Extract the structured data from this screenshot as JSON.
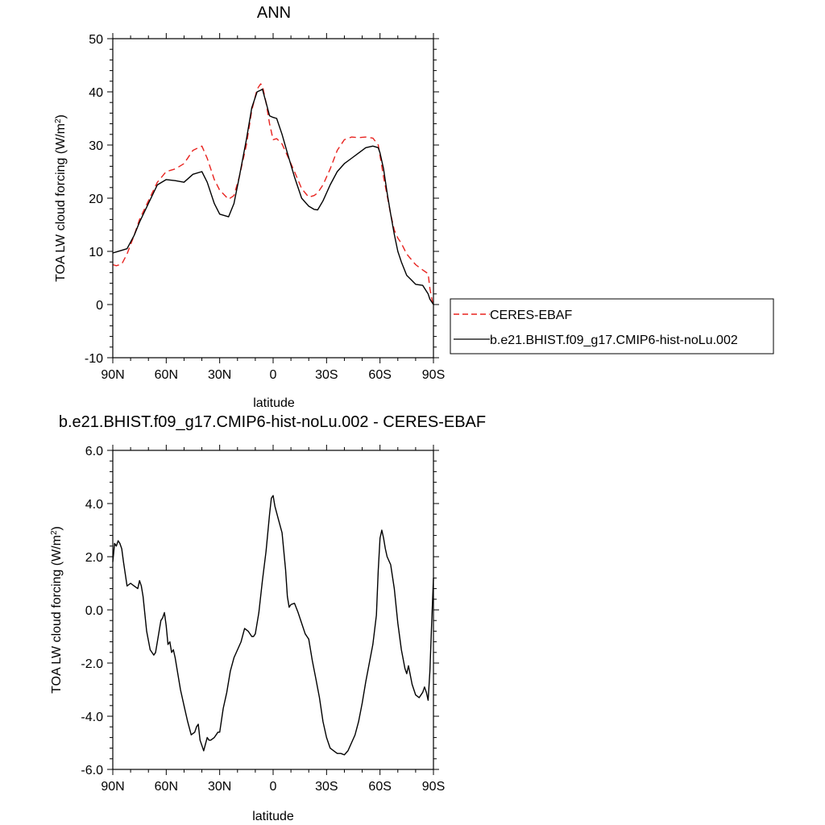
{
  "chart_data": [
    {
      "type": "line",
      "title": "ANN",
      "xlabel": "latitude",
      "ylabel": "TOA LW cloud forcing (W/m",
      "ylabel_sup": "2",
      "ylabel_close": ")",
      "xlim": [
        90,
        -90
      ],
      "ylim": [
        -10,
        50
      ],
      "xticks": [
        {
          "value": 90,
          "label": "90N"
        },
        {
          "value": 60,
          "label": "60N"
        },
        {
          "value": 30,
          "label": "30N"
        },
        {
          "value": 0,
          "label": "0"
        },
        {
          "value": -30,
          "label": "30S"
        },
        {
          "value": -60,
          "label": "60S"
        },
        {
          "value": -90,
          "label": "90S"
        }
      ],
      "yticks": [
        {
          "value": 50,
          "label": "50"
        },
        {
          "value": 40,
          "label": "40"
        },
        {
          "value": 30,
          "label": "30"
        },
        {
          "value": 20,
          "label": "20"
        },
        {
          "value": 10,
          "label": "10"
        },
        {
          "value": 0,
          "label": "0"
        },
        {
          "value": -10,
          "label": "-10"
        }
      ],
      "legend_position": "right",
      "series": [
        {
          "name": "CERES-EBAF",
          "color": "#e8231f",
          "dash": true,
          "x": [
            90,
            88,
            85,
            82,
            78,
            75,
            70,
            65,
            60,
            55,
            50,
            45,
            40,
            37,
            33,
            30,
            25,
            22,
            19,
            15,
            12,
            9,
            7,
            6,
            4,
            2,
            0,
            -2,
            -5,
            -8,
            -12,
            -16,
            -20,
            -23,
            -25,
            -28,
            -32,
            -36,
            -40,
            -44,
            -48,
            -52,
            -56,
            -59,
            -60,
            -62,
            -64,
            -66,
            -68,
            -70,
            -72,
            -75,
            -80,
            -84,
            -87,
            -88,
            -90
          ],
          "y": [
            7.5,
            7.3,
            7.6,
            9.5,
            13,
            16,
            19.5,
            23,
            25,
            25.5,
            26.5,
            29,
            29.8,
            27.5,
            23.5,
            21.5,
            19.8,
            20.5,
            24,
            30,
            36.5,
            40.5,
            41.5,
            41.2,
            38,
            34,
            31,
            31.2,
            30.2,
            28,
            25,
            21.8,
            20.2,
            20.5,
            21,
            22.5,
            25.5,
            29,
            31,
            31.5,
            31.4,
            31.5,
            31.3,
            30,
            28,
            24,
            20.5,
            17,
            14,
            12.5,
            11.5,
            9.5,
            7.5,
            6.5,
            5.8,
            3,
            -0.5
          ]
        },
        {
          "name": "b.e21.BHIST.f09_g17.CMIP6-hist-noLu.002",
          "color": "#000000",
          "dash": false,
          "x": [
            90,
            88,
            85,
            82,
            78,
            75,
            70,
            65,
            60,
            55,
            50,
            45,
            40,
            37,
            33,
            30,
            25,
            22,
            19,
            15,
            12,
            9,
            7,
            6,
            4,
            2,
            0,
            -2,
            -5,
            -8,
            -12,
            -16,
            -20,
            -23,
            -25,
            -28,
            -32,
            -36,
            -40,
            -44,
            -48,
            -52,
            -56,
            -59,
            -60,
            -62,
            -64,
            -66,
            -68,
            -70,
            -72,
            -75,
            -80,
            -84,
            -87,
            -88,
            -90
          ],
          "y": [
            9.7,
            9.9,
            10.2,
            10.5,
            13,
            15.5,
            19,
            22.5,
            23.5,
            23.3,
            23,
            24.5,
            25,
            23,
            19,
            17,
            16.5,
            19,
            24,
            31,
            37,
            40,
            40.3,
            40.5,
            38,
            35.5,
            35.2,
            35,
            32,
            28.5,
            24,
            20,
            18.5,
            17.9,
            17.8,
            19.5,
            22.5,
            25,
            26.5,
            27.5,
            28.5,
            29.5,
            29.8,
            29.5,
            28.5,
            25.5,
            21,
            17,
            13.2,
            10,
            8,
            5.5,
            3.8,
            3.6,
            2,
            1,
            0
          ]
        }
      ]
    },
    {
      "type": "line",
      "title": "b.e21.BHIST.f09_g17.CMIP6-hist-noLu.002 - CERES-EBAF",
      "xlabel": "latitude",
      "ylabel": "TOA LW cloud forcing (W/m",
      "ylabel_sup": "2",
      "ylabel_close": ")",
      "xlim": [
        90,
        -90
      ],
      "ylim": [
        -6,
        6
      ],
      "xticks": [
        {
          "value": 90,
          "label": "90N"
        },
        {
          "value": 60,
          "label": "60N"
        },
        {
          "value": 30,
          "label": "30N"
        },
        {
          "value": 0,
          "label": "0"
        },
        {
          "value": -30,
          "label": "30S"
        },
        {
          "value": -60,
          "label": "60S"
        },
        {
          "value": -90,
          "label": "90S"
        }
      ],
      "yticks": [
        {
          "value": 6,
          "label": "6.0"
        },
        {
          "value": 4,
          "label": "4.0"
        },
        {
          "value": 2,
          "label": "2.0"
        },
        {
          "value": 0,
          "label": "0.0"
        },
        {
          "value": -2,
          "label": "-2.0"
        },
        {
          "value": -4,
          "label": "-4.0"
        },
        {
          "value": -6,
          "label": "-6.0"
        }
      ],
      "series": [
        {
          "name": "",
          "color": "#000000",
          "dash": false,
          "x": [
            90,
            89,
            88,
            87,
            86,
            85,
            84,
            82,
            80,
            78,
            76,
            75,
            74,
            73,
            71,
            69,
            67,
            66,
            65,
            64,
            63,
            62,
            61,
            60,
            59,
            58,
            57,
            56,
            55,
            54,
            52,
            50,
            48,
            46,
            44,
            43,
            42,
            41,
            40,
            39,
            37,
            36,
            35,
            33,
            31,
            30,
            28,
            26,
            24,
            22,
            20,
            18,
            16,
            14,
            12,
            11,
            10,
            8,
            6,
            4,
            2,
            1,
            0,
            -1,
            -3,
            -5,
            -7,
            -8,
            -9,
            -10,
            -12,
            -14,
            -16,
            -18,
            -20,
            -22,
            -24,
            -26,
            -28,
            -30,
            -32,
            -34,
            -36,
            -38,
            -40,
            -42,
            -44,
            -46,
            -48,
            -50,
            -52,
            -54,
            -56,
            -58,
            -59,
            -60,
            -61,
            -62,
            -63,
            -64,
            -66,
            -68,
            -70,
            -72,
            -74,
            -75,
            -76,
            -78,
            -80,
            -82,
            -84,
            -85,
            -86,
            -87,
            -88,
            -89,
            -90
          ],
          "y": [
            1.8,
            2.5,
            2.4,
            2.6,
            2.5,
            2.3,
            1.8,
            0.9,
            1,
            0.9,
            0.8,
            1.1,
            0.9,
            0.5,
            -0.8,
            -1.5,
            -1.7,
            -1.6,
            -1.2,
            -0.8,
            -0.4,
            -0.3,
            -0.1,
            -0.6,
            -1.3,
            -1.2,
            -1.6,
            -1.5,
            -1.8,
            -2.2,
            -3,
            -3.6,
            -4.2,
            -4.7,
            -4.6,
            -4.4,
            -4.3,
            -4.9,
            -5.1,
            -5.3,
            -4.8,
            -4.9,
            -4.9,
            -4.8,
            -4.6,
            -4.6,
            -3.7,
            -3.1,
            -2.3,
            -1.8,
            -1.5,
            -1.2,
            -0.7,
            -0.8,
            -1,
            -1,
            -0.9,
            -0.1,
            1.1,
            2.2,
            3.6,
            4.2,
            4.3,
            3.9,
            3.4,
            2.9,
            1.5,
            0.5,
            0.1,
            0.2,
            0.25,
            -0.1,
            -0.5,
            -0.9,
            -1.1,
            -1.9,
            -2.6,
            -3.3,
            -4.2,
            -4.8,
            -5.2,
            -5.3,
            -5.4,
            -5.4,
            -5.45,
            -5.3,
            -5,
            -4.7,
            -4.2,
            -3.5,
            -2.7,
            -2,
            -1.3,
            -0.2,
            1.5,
            2.7,
            3,
            2.7,
            2.3,
            2,
            1.7,
            0.8,
            -0.5,
            -1.5,
            -2.2,
            -2.4,
            -2.1,
            -2.8,
            -3.2,
            -3.3,
            -3.1,
            -2.9,
            -3.1,
            -3.4,
            -2.3,
            -0.5,
            1.2
          ]
        }
      ]
    }
  ],
  "legend": {
    "items": [
      {
        "label": "CERES-EBAF",
        "color": "#e8231f",
        "dash": true
      },
      {
        "label": "b.e21.BHIST.f09_g17.CMIP6-hist-noLu.002",
        "color": "#000000",
        "dash": false
      }
    ]
  }
}
